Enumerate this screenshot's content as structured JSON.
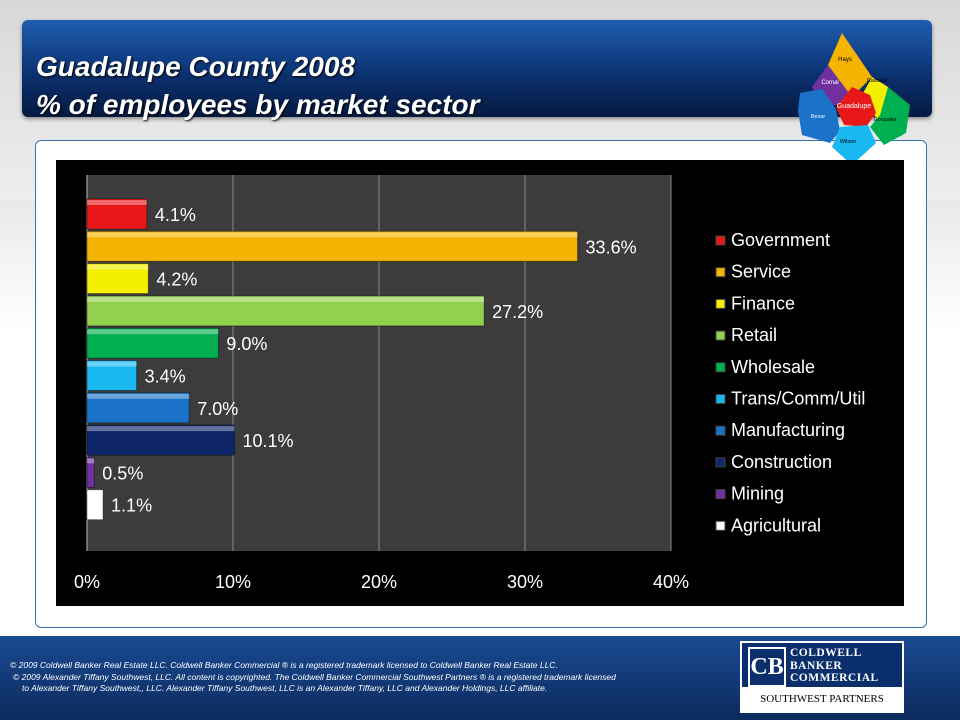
{
  "header": {
    "title_line1": "Guadalupe County 2008",
    "title_line2": "% of employees by market sector"
  },
  "map": {
    "counties": [
      "Hays",
      "Comal",
      "Caldwell",
      "Guadalupe",
      "Bexar",
      "Gonzales",
      "Wilson"
    ]
  },
  "chart_data": {
    "type": "bar",
    "orientation": "horizontal",
    "categories": [
      "Government",
      "Service",
      "Finance",
      "Retail",
      "Wholesale",
      "Trans/Comm/Util",
      "Manufacturing",
      "Construction",
      "Mining",
      "Agricultural"
    ],
    "values": [
      4.1,
      33.6,
      4.2,
      27.2,
      9.0,
      3.4,
      7.0,
      10.1,
      0.5,
      1.1
    ],
    "labels": [
      "4.1%",
      "33.6%",
      "4.2%",
      "27.2%",
      "9.0%",
      "3.4%",
      "7.0%",
      "10.1%",
      "0.5%",
      "1.1%"
    ],
    "colors": [
      "#e81818",
      "#f5b400",
      "#f5f000",
      "#92d050",
      "#00b050",
      "#19b8f0",
      "#1a73c8",
      "#10266a",
      "#7030a0",
      "#ffffff"
    ],
    "xlim": [
      0,
      40
    ],
    "xticks": [
      "0%",
      "10%",
      "20%",
      "30%",
      "40%"
    ],
    "grid": true,
    "legend_position": "right"
  },
  "footer": {
    "line1": "© 2009 Coldwell Banker Real Estate LLC. Coldwell Banker Commercial ® is a registered trademark licensed to Coldwell Banker Real Estate LLC.",
    "line2": "© 2009 Alexander Tiffany Southwest, LLC. All content is copyrighted. The Coldwell Banker Commercial Southwest Partners ® is a registered trademark licensed",
    "line3": "to Alexander Tiffany Southwest,, LLC.  Alexander Tiffany Southwest, LLC is an Alexander Tiffany, LLC and Alexander Holdings, LLC affiliate."
  },
  "logo": {
    "name_lines": [
      "COLDWELL",
      "BANKER",
      "COMMERCIAL"
    ],
    "subtitle": "SOUTHWEST PARTNERS",
    "mark": "CB"
  }
}
